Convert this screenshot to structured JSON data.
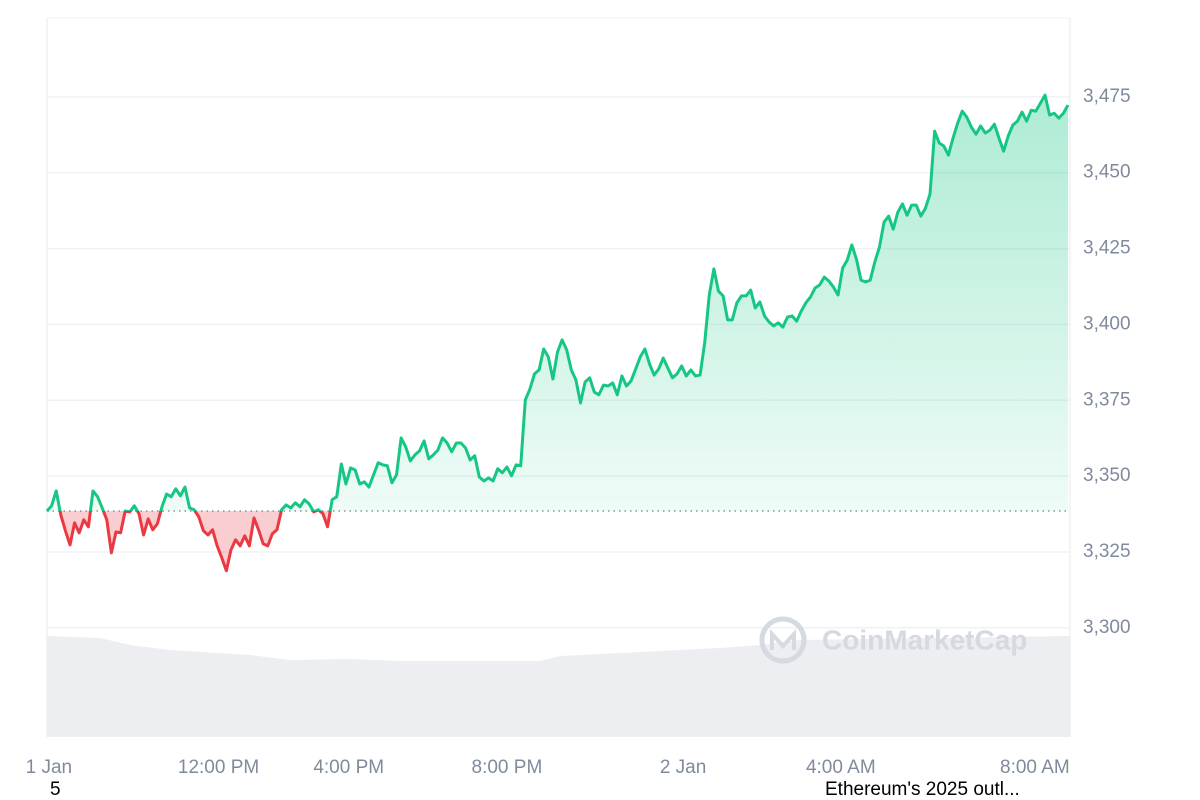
{
  "chart_data": {
    "type": "line",
    "values": [
      3338.5,
      3340.2,
      3345.1,
      3337.2,
      3332.0,
      3327.3,
      3334.6,
      3331.3,
      3335.6,
      3333.3,
      3345.1,
      3343.2,
      3339.5,
      3335.6,
      3324.7,
      3331.6,
      3331.3,
      3338.5,
      3338.2,
      3340.2,
      3337.6,
      3330.6,
      3335.9,
      3332.3,
      3334.3,
      3339.9,
      3344.1,
      3343.2,
      3345.8,
      3343.5,
      3346.4,
      3339.5,
      3338.9,
      3336.6,
      3332.0,
      3330.6,
      3332.3,
      3327.0,
      3323.1,
      3318.8,
      3325.7,
      3329.0,
      3327.0,
      3330.3,
      3327.0,
      3336.2,
      3332.3,
      3327.7,
      3327.0,
      3331.0,
      3332.3,
      3338.9,
      3340.5,
      3339.5,
      3341.2,
      3339.9,
      3342.2,
      3340.8,
      3338.2,
      3338.9,
      3337.6,
      3333.3,
      3342.2,
      3343.2,
      3354.0,
      3347.4,
      3352.7,
      3352.0,
      3347.4,
      3348.1,
      3346.4,
      3350.4,
      3354.4,
      3353.7,
      3353.4,
      3347.8,
      3350.4,
      3362.6,
      3359.6,
      3355.0,
      3357.0,
      3358.3,
      3361.6,
      3355.7,
      3357.0,
      3358.6,
      3362.6,
      3360.9,
      3358.0,
      3360.9,
      3360.9,
      3359.3,
      3355.3,
      3356.7,
      3349.7,
      3348.4,
      3349.4,
      3348.4,
      3352.4,
      3351.1,
      3353.0,
      3350.1,
      3353.7,
      3353.4,
      3375.1,
      3378.7,
      3383.7,
      3385.0,
      3391.9,
      3389.3,
      3382.0,
      3390.9,
      3394.9,
      3391.6,
      3385.0,
      3381.7,
      3374.1,
      3381.0,
      3382.4,
      3377.7,
      3376.8,
      3380.0,
      3379.7,
      3380.7,
      3376.8,
      3383.0,
      3379.7,
      3381.4,
      3385.3,
      3389.3,
      3391.9,
      3387.0,
      3383.3,
      3385.3,
      3388.9,
      3385.6,
      3382.4,
      3383.7,
      3386.3,
      3383.0,
      3385.0,
      3383.0,
      3383.3,
      3393.9,
      3409.7,
      3418.3,
      3411.0,
      3409.4,
      3401.5,
      3401.5,
      3407.1,
      3409.4,
      3409.4,
      3411.3,
      3405.4,
      3407.4,
      3402.8,
      3400.8,
      3399.5,
      3400.5,
      3399.1,
      3402.4,
      3402.8,
      3401.1,
      3404.4,
      3407.1,
      3409.0,
      3412.0,
      3413.0,
      3415.6,
      3414.3,
      3412.3,
      3409.7,
      3418.6,
      3421.2,
      3426.2,
      3421.5,
      3414.6,
      3414.0,
      3414.6,
      3420.6,
      3425.5,
      3433.7,
      3435.7,
      3431.4,
      3437.0,
      3439.7,
      3436.0,
      3439.3,
      3439.3,
      3435.7,
      3438.3,
      3443.0,
      3463.7,
      3459.8,
      3458.8,
      3455.8,
      3461.4,
      3466.3,
      3470.3,
      3468.3,
      3465.0,
      3462.7,
      3465.4,
      3463.1,
      3464.0,
      3466.0,
      3461.4,
      3457.1,
      3462.1,
      3465.7,
      3467.0,
      3470.0,
      3467.0,
      3470.6,
      3470.3,
      3472.9,
      3475.6,
      3469.0,
      3469.6,
      3468.0,
      3469.6,
      3472.3
    ],
    "baseline": 3338.5,
    "up_color": "#16c784",
    "down_color": "#ea3943",
    "xlim": [
      0,
      222
    ],
    "xticks": [
      {
        "value": 0.4,
        "label": "1 Jan"
      },
      {
        "value": 37.3,
        "label": "12:00 PM"
      },
      {
        "value": 65.6,
        "label": "4:00 PM"
      },
      {
        "value": 100,
        "label": "8:00 PM"
      },
      {
        "value": 138.3,
        "label": "2 Jan"
      },
      {
        "value": 172.6,
        "label": "4:00 AM"
      },
      {
        "value": 214.8,
        "label": "8:00 AM"
      }
    ],
    "ylim": [
      3264,
      3501
    ],
    "yticks": [
      {
        "value": 3300,
        "label": "3,300"
      },
      {
        "value": 3325,
        "label": "3,325"
      },
      {
        "value": 3350,
        "label": "3,350"
      },
      {
        "value": 3375,
        "label": "3,375"
      },
      {
        "value": 3400,
        "label": "3,400"
      },
      {
        "value": 3425,
        "label": "3,425"
      },
      {
        "value": 3450,
        "label": "3,450"
      },
      {
        "value": 3475,
        "label": "3,475"
      }
    ],
    "grid": true,
    "watermark": "CoinMarketCap"
  },
  "footer": {
    "left": "5",
    "right": "Ethereum's 2025 outl..."
  }
}
